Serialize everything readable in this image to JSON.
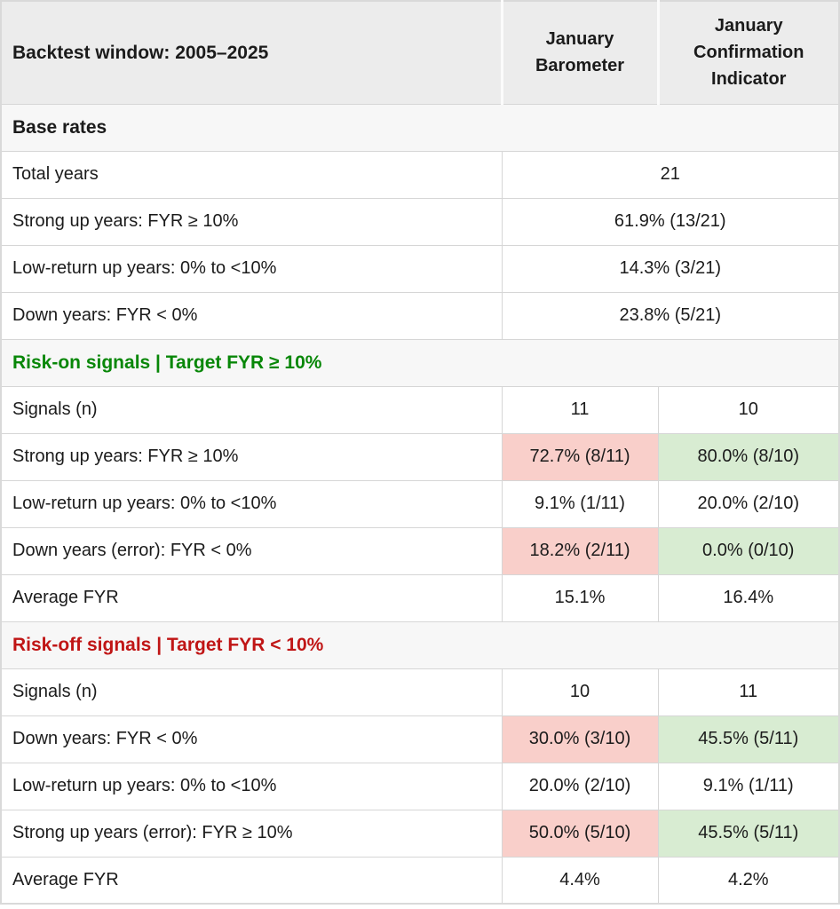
{
  "colors": {
    "header_bg": "#ececec",
    "section_bg": "#f7f7f7",
    "border": "#d6d6d6",
    "highlight_pink": "#f9cfca",
    "highlight_green": "#d8ecd2",
    "section_green_text": "#088708",
    "section_red_text": "#c01515",
    "body_text": "#1b1b1b"
  },
  "chart_data": {
    "type": "table",
    "title": "Backtest window: 2005–2025",
    "columns": [
      "Backtest window: 2005–2025",
      "January Barometer",
      "January Confirmation Indicator"
    ],
    "rows": [
      {
        "kind": "section",
        "style": "neutral",
        "label": "Base rates"
      },
      {
        "kind": "merged",
        "label": "Total years",
        "value": "21"
      },
      {
        "kind": "merged",
        "label": "Strong up years: FYR ≥ 10%",
        "value": "61.9% (13/21)"
      },
      {
        "kind": "merged",
        "label": "Low-return up years: 0% to <10%",
        "value": "14.3% (3/21)"
      },
      {
        "kind": "merged",
        "label": "Down years: FYR < 0%",
        "value": "23.8% (5/21)"
      },
      {
        "kind": "section",
        "style": "green",
        "label": "Risk-on signals | Target FYR ≥ 10%"
      },
      {
        "kind": "data",
        "label": "Signals (n)",
        "jb": "11",
        "jb_bg": "none",
        "jci": "10",
        "jci_bg": "none"
      },
      {
        "kind": "data",
        "label": "Strong up years: FYR ≥ 10%",
        "jb": "72.7% (8/11)",
        "jb_bg": "pink",
        "jci": "80.0% (8/10)",
        "jci_bg": "green"
      },
      {
        "kind": "data",
        "label": "Low-return up years: 0% to <10%",
        "jb": "9.1% (1/11)",
        "jb_bg": "none",
        "jci": "20.0% (2/10)",
        "jci_bg": "none"
      },
      {
        "kind": "data",
        "label": "Down years (error): FYR < 0%",
        "jb": "18.2% (2/11)",
        "jb_bg": "pink",
        "jci": "0.0% (0/10)",
        "jci_bg": "green"
      },
      {
        "kind": "data",
        "label": "Average FYR",
        "jb": "15.1%",
        "jb_bg": "none",
        "jci": "16.4%",
        "jci_bg": "none"
      },
      {
        "kind": "section",
        "style": "red",
        "label": "Risk-off signals | Target FYR < 10%"
      },
      {
        "kind": "data",
        "label": "Signals (n)",
        "jb": "10",
        "jb_bg": "none",
        "jci": "11",
        "jci_bg": "none"
      },
      {
        "kind": "data",
        "label": "Down years: FYR < 0%",
        "jb": "30.0% (3/10)",
        "jb_bg": "pink",
        "jci": "45.5% (5/11)",
        "jci_bg": "green"
      },
      {
        "kind": "data",
        "label": "Low-return up years: 0% to <10%",
        "jb": "20.0% (2/10)",
        "jb_bg": "none",
        "jci": "9.1% (1/11)",
        "jci_bg": "none"
      },
      {
        "kind": "data",
        "label": "Strong up years (error): FYR ≥ 10%",
        "jb": "50.0% (5/10)",
        "jb_bg": "pink",
        "jci": "45.5% (5/11)",
        "jci_bg": "green"
      },
      {
        "kind": "data",
        "label": "Average FYR",
        "jb": "4.4%",
        "jb_bg": "none",
        "jci": "4.2%",
        "jci_bg": "none"
      }
    ]
  }
}
